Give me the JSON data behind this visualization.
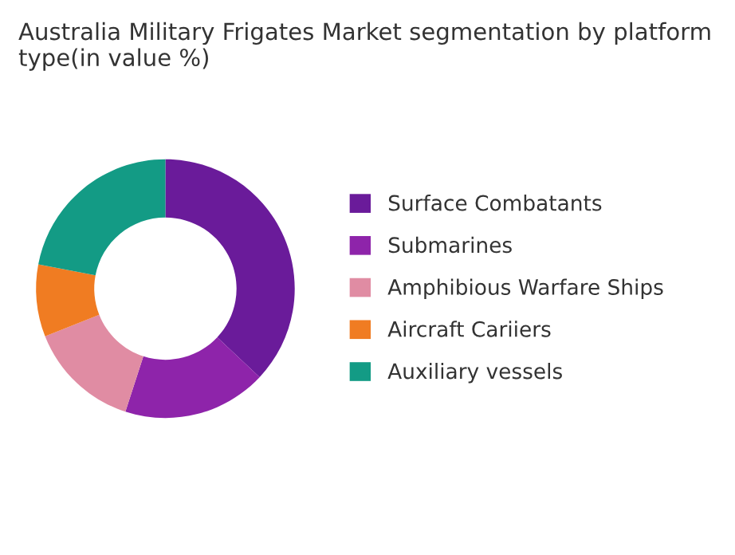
{
  "chart_data": {
    "type": "donut",
    "title": "Australia Military Frigates Market segmentation by platform type(in value %)",
    "categories": [
      "Surface Combatants",
      "Submarines",
      "Amphibious Warfare Ships",
      "Aircraft Cariiers",
      "Auxiliary vessels"
    ],
    "values": [
      37,
      18,
      14,
      9,
      22
    ],
    "colors": [
      "#6a1b9a",
      "#8e24aa",
      "#e08ca3",
      "#f07c22",
      "#139b85"
    ],
    "legend": "right"
  }
}
